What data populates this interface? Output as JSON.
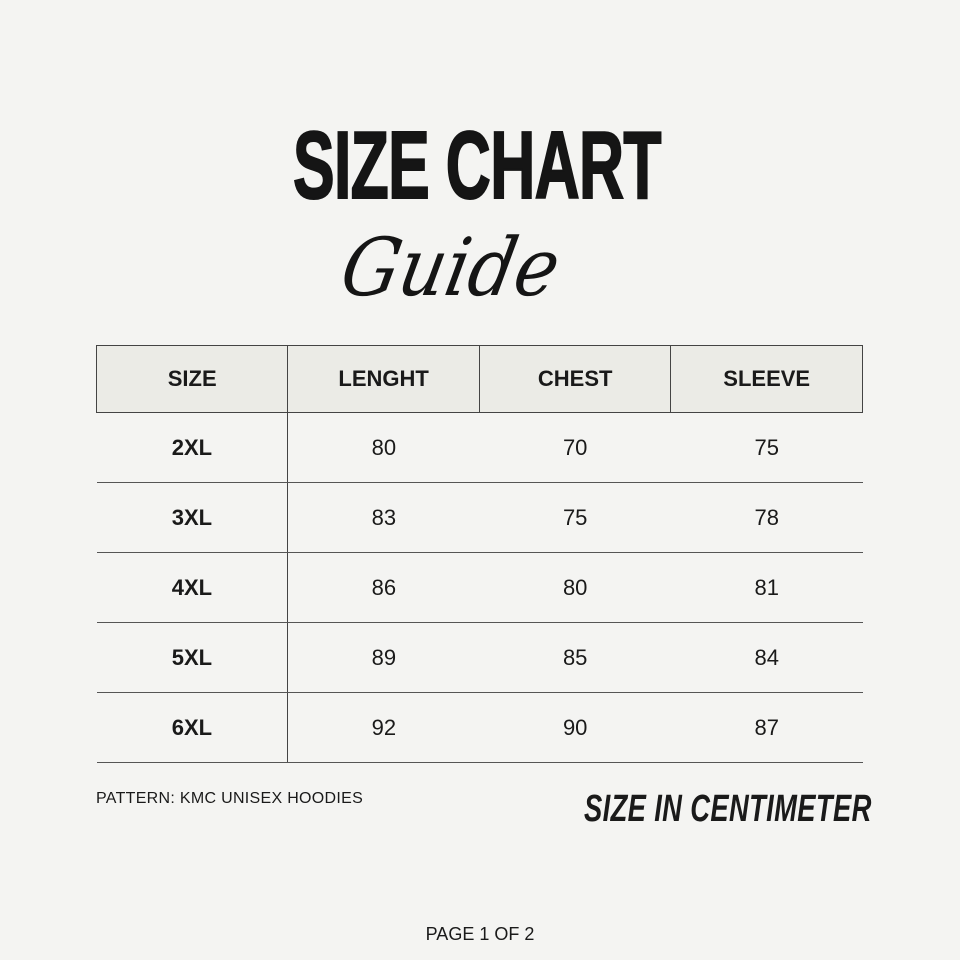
{
  "title": {
    "main": "SIZE CHART",
    "script": "Guide"
  },
  "table": {
    "headers": [
      "SIZE",
      "LENGHT",
      "CHEST",
      "SLEEVE"
    ],
    "rows": [
      [
        "2XL",
        "80",
        "70",
        "75"
      ],
      [
        "3XL",
        "83",
        "75",
        "78"
      ],
      [
        "4XL",
        "86",
        "80",
        "81"
      ],
      [
        "5XL",
        "89",
        "85",
        "84"
      ],
      [
        "6XL",
        "92",
        "90",
        "87"
      ]
    ]
  },
  "pattern": "PATTERN: KMC UNISEX HOODIES",
  "unit_note": "SIZE IN CENTIMETER",
  "page_indicator": "PAGE 1 OF 2",
  "colors": {
    "background": "#f4f4f2",
    "header_fill": "#ebebe6",
    "text": "#1a1a1a"
  }
}
